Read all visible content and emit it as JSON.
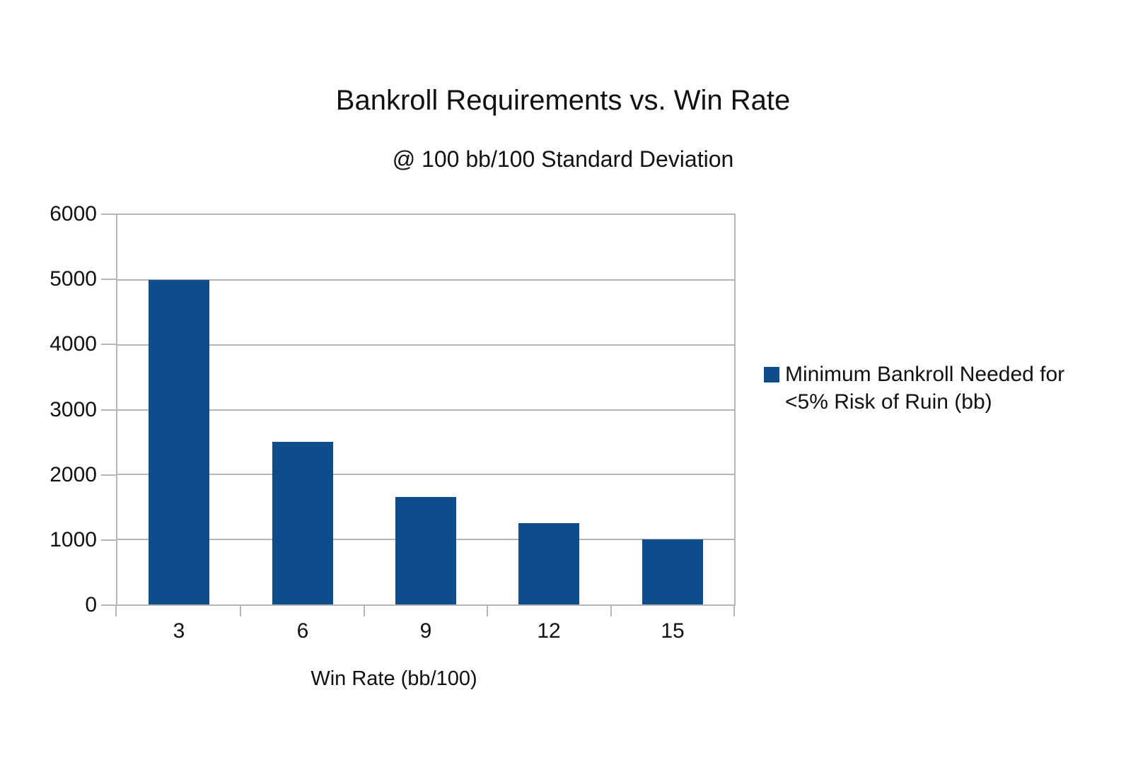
{
  "chart_data": {
    "type": "bar",
    "title": "Bankroll Requirements vs. Win Rate",
    "subtitle": "@ 100 bb/100 Standard Deviation",
    "categories": [
      "3",
      "6",
      "9",
      "12",
      "15"
    ],
    "series": [
      {
        "name": "Minimum Bankroll Needed for <5% Risk of Ruin (bb)",
        "values": [
          5000,
          2500,
          1660,
          1250,
          1000
        ]
      }
    ],
    "xlabel": "Win Rate (bb/100)",
    "ylabel": "",
    "ylim": [
      0,
      6000
    ],
    "ytick_step": 1000,
    "yticks": [
      "0",
      "1000",
      "2000",
      "3000",
      "4000",
      "5000",
      "6000"
    ],
    "grid": true,
    "legend_position": "right",
    "legend_lines": [
      "Minimum Bankroll Needed for",
      "<5% Risk of Ruin (bb)"
    ]
  },
  "colors": {
    "bar": "#0d4d8c",
    "gridline": "#b6b6b6",
    "text": "#111111",
    "background": "#ffffff"
  }
}
